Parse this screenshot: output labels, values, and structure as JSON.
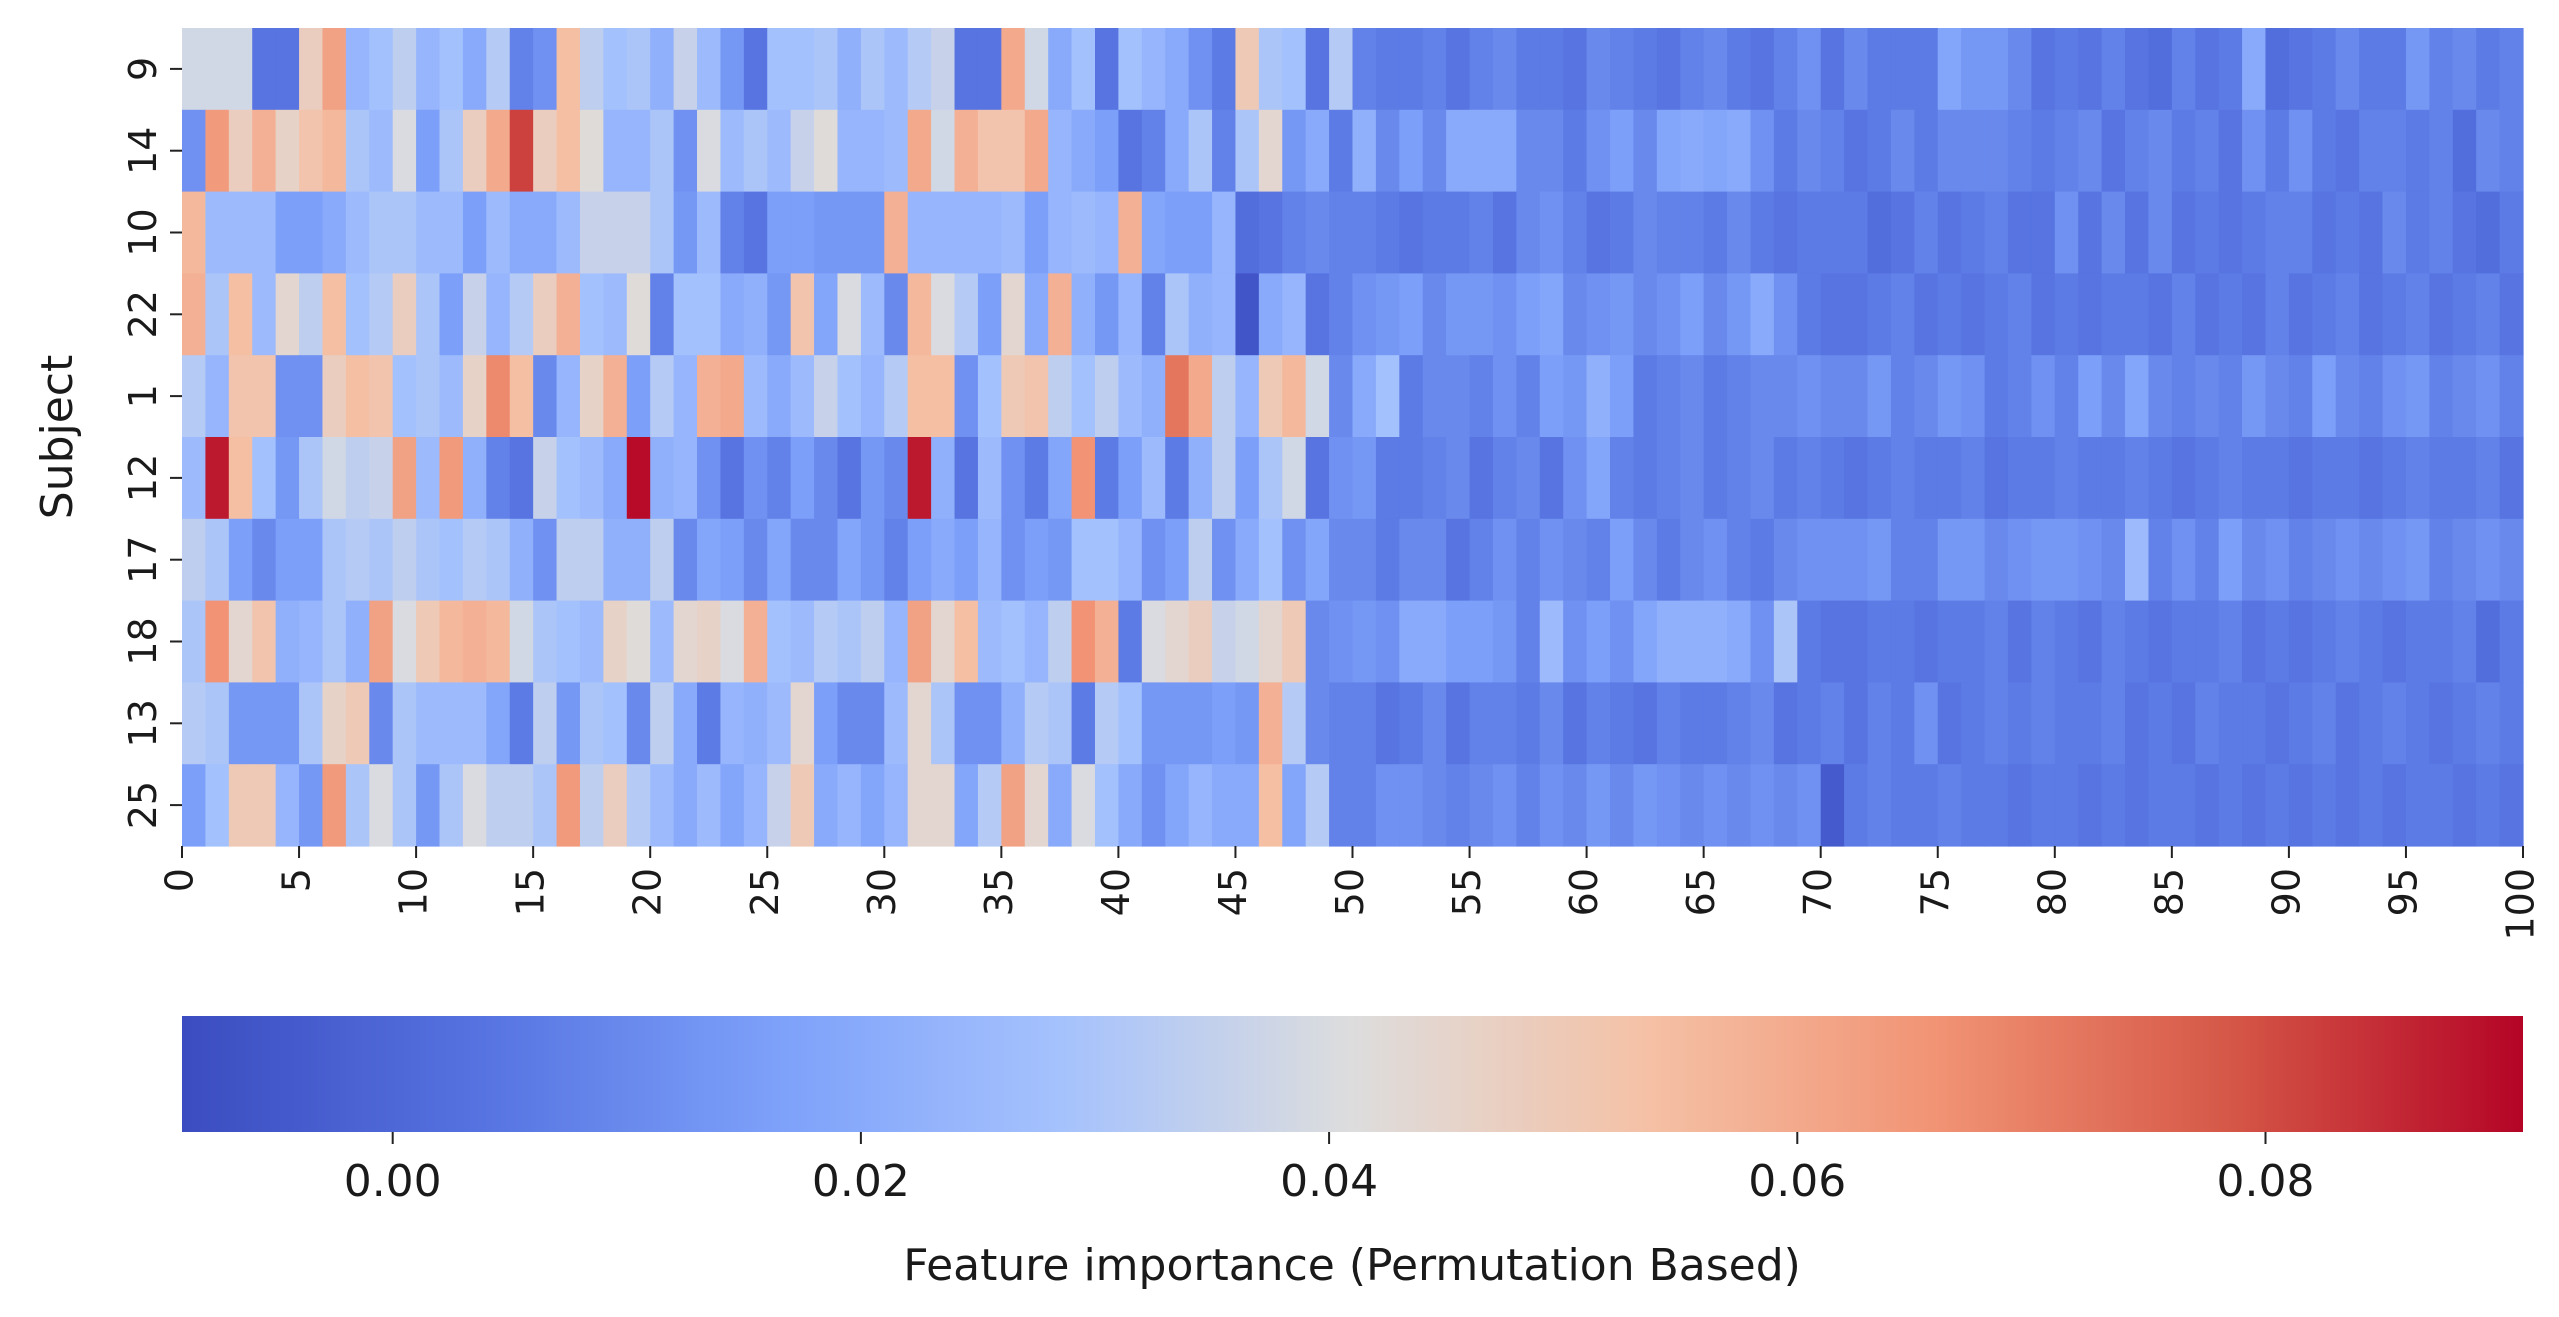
{
  "chart_data": {
    "type": "heatmap",
    "ylabel": "Subject",
    "xlabel": "",
    "colorbar": {
      "label": "Feature importance (Permutation Based)",
      "ticks": [
        "0.00",
        "0.02",
        "0.04",
        "0.06",
        "0.08"
      ],
      "tick_values": [
        0.0,
        0.02,
        0.04,
        0.06,
        0.08
      ],
      "range": [
        -0.009,
        0.091
      ],
      "colormap": "coolwarm",
      "orientation": "horizontal",
      "placement": "bottom"
    },
    "y_categories": [
      "9",
      "14",
      "10",
      "22",
      "1",
      "12",
      "17",
      "18",
      "13",
      "25"
    ],
    "x_ticks": [
      "0",
      "5",
      "10",
      "15",
      "20",
      "25",
      "30",
      "35",
      "40",
      "45",
      "50",
      "55",
      "60",
      "65",
      "70",
      "75",
      "80",
      "85",
      "90",
      "95",
      "100"
    ],
    "x_range": [
      0,
      100
    ],
    "values": [
      [
        0.038,
        0.038,
        0.038,
        0.004,
        0.004,
        0.048,
        0.062,
        0.024,
        0.028,
        0.034,
        0.024,
        0.028,
        0.02,
        0.032,
        0.008,
        0.012,
        0.054,
        0.034,
        0.028,
        0.03,
        0.022,
        0.036,
        0.026,
        0.014,
        0.004,
        0.028,
        0.028,
        0.03,
        0.022,
        0.03,
        0.026,
        0.032,
        0.036,
        0.004,
        0.004,
        0.06,
        0.038,
        0.02,
        0.028,
        0.004,
        0.028,
        0.024,
        0.02,
        0.012,
        0.006,
        0.05,
        0.03,
        0.028,
        0.004,
        0.032,
        0.008,
        0.006,
        0.006,
        0.008,
        0.004,
        0.008,
        0.01,
        0.006,
        0.006,
        0.004,
        0.01,
        0.008,
        0.006,
        0.004,
        0.008,
        0.01,
        0.006,
        0.004,
        0.008,
        0.012,
        0.004,
        0.01,
        0.006,
        0.006,
        0.006,
        0.018,
        0.014,
        0.014,
        0.01,
        0.004,
        0.006,
        0.004,
        0.008,
        0.004,
        0.002,
        0.008,
        0.004,
        0.006,
        0.02,
        0.002,
        0.004,
        0.006,
        0.01,
        0.006,
        0.006,
        0.014,
        0.008,
        0.01,
        0.006,
        0.008
      ],
      [
        0.012,
        0.064,
        0.048,
        0.058,
        0.046,
        0.052,
        0.056,
        0.03,
        0.026,
        0.04,
        0.016,
        0.03,
        0.048,
        0.06,
        0.082,
        0.048,
        0.054,
        0.042,
        0.024,
        0.024,
        0.03,
        0.012,
        0.04,
        0.026,
        0.03,
        0.026,
        0.036,
        0.042,
        0.024,
        0.024,
        0.026,
        0.06,
        0.038,
        0.058,
        0.052,
        0.052,
        0.06,
        0.024,
        0.02,
        0.016,
        0.004,
        0.008,
        0.02,
        0.03,
        0.008,
        0.03,
        0.044,
        0.014,
        0.02,
        0.006,
        0.022,
        0.01,
        0.016,
        0.01,
        0.02,
        0.02,
        0.02,
        0.01,
        0.01,
        0.006,
        0.012,
        0.016,
        0.01,
        0.018,
        0.02,
        0.018,
        0.02,
        0.012,
        0.006,
        0.01,
        0.008,
        0.004,
        0.006,
        0.01,
        0.006,
        0.01,
        0.01,
        0.01,
        0.008,
        0.006,
        0.008,
        0.01,
        0.004,
        0.008,
        0.01,
        0.006,
        0.008,
        0.004,
        0.012,
        0.006,
        0.012,
        0.006,
        0.004,
        0.008,
        0.008,
        0.006,
        0.008,
        0.002,
        0.01,
        0.008
      ],
      [
        0.056,
        0.026,
        0.026,
        0.026,
        0.016,
        0.016,
        0.02,
        0.026,
        0.03,
        0.03,
        0.026,
        0.026,
        0.016,
        0.026,
        0.02,
        0.02,
        0.026,
        0.036,
        0.036,
        0.036,
        0.03,
        0.014,
        0.026,
        0.008,
        0.004,
        0.016,
        0.016,
        0.014,
        0.014,
        0.014,
        0.058,
        0.024,
        0.024,
        0.024,
        0.024,
        0.026,
        0.016,
        0.024,
        0.026,
        0.024,
        0.058,
        0.018,
        0.016,
        0.016,
        0.024,
        0.002,
        0.004,
        0.008,
        0.01,
        0.008,
        0.008,
        0.006,
        0.004,
        0.006,
        0.006,
        0.008,
        0.004,
        0.01,
        0.012,
        0.008,
        0.004,
        0.006,
        0.01,
        0.008,
        0.008,
        0.006,
        0.01,
        0.006,
        0.004,
        0.006,
        0.006,
        0.006,
        0.002,
        0.004,
        0.008,
        0.004,
        0.006,
        0.008,
        0.004,
        0.004,
        0.012,
        0.004,
        0.01,
        0.004,
        0.01,
        0.004,
        0.006,
        0.004,
        0.006,
        0.008,
        0.008,
        0.004,
        0.006,
        0.004,
        0.01,
        0.006,
        0.008,
        0.004,
        0.002,
        0.006
      ],
      [
        0.058,
        0.03,
        0.054,
        0.026,
        0.044,
        0.034,
        0.054,
        0.028,
        0.032,
        0.048,
        0.03,
        0.016,
        0.036,
        0.024,
        0.032,
        0.048,
        0.058,
        0.028,
        0.026,
        0.042,
        0.008,
        0.028,
        0.028,
        0.02,
        0.022,
        0.014,
        0.052,
        0.018,
        0.04,
        0.026,
        0.01,
        0.056,
        0.04,
        0.032,
        0.016,
        0.044,
        0.02,
        0.058,
        0.022,
        0.014,
        0.024,
        0.008,
        0.03,
        0.022,
        0.024,
        -0.006,
        0.02,
        0.024,
        0.004,
        0.008,
        0.012,
        0.014,
        0.016,
        0.01,
        0.014,
        0.014,
        0.012,
        0.016,
        0.018,
        0.01,
        0.012,
        0.014,
        0.01,
        0.012,
        0.016,
        0.01,
        0.014,
        0.02,
        0.012,
        0.006,
        0.004,
        0.004,
        0.006,
        0.008,
        0.004,
        0.006,
        0.004,
        0.006,
        0.008,
        0.004,
        0.006,
        0.004,
        0.006,
        0.006,
        0.004,
        0.008,
        0.004,
        0.006,
        0.004,
        0.008,
        0.004,
        0.006,
        0.008,
        0.004,
        0.006,
        0.008,
        0.004,
        0.006,
        0.008,
        0.004
      ],
      [
        0.032,
        0.024,
        0.052,
        0.052,
        0.012,
        0.012,
        0.048,
        0.054,
        0.052,
        0.028,
        0.03,
        0.026,
        0.046,
        0.068,
        0.054,
        0.01,
        0.024,
        0.046,
        0.058,
        0.016,
        0.032,
        0.024,
        0.058,
        0.06,
        0.026,
        0.02,
        0.026,
        0.036,
        0.028,
        0.024,
        0.032,
        0.054,
        0.054,
        0.012,
        0.028,
        0.05,
        0.052,
        0.034,
        0.028,
        0.034,
        0.026,
        0.022,
        0.072,
        0.06,
        0.034,
        0.024,
        0.05,
        0.056,
        0.038,
        0.01,
        0.02,
        0.028,
        0.006,
        0.01,
        0.01,
        0.008,
        0.012,
        0.008,
        0.016,
        0.014,
        0.022,
        0.016,
        0.006,
        0.008,
        0.01,
        0.006,
        0.008,
        0.01,
        0.01,
        0.012,
        0.01,
        0.01,
        0.014,
        0.008,
        0.01,
        0.014,
        0.012,
        0.006,
        0.008,
        0.012,
        0.008,
        0.016,
        0.01,
        0.018,
        0.01,
        0.008,
        0.01,
        0.008,
        0.014,
        0.01,
        0.008,
        0.016,
        0.01,
        0.008,
        0.012,
        0.014,
        0.008,
        0.01,
        0.012,
        0.008
      ],
      [
        0.026,
        0.088,
        0.054,
        0.028,
        0.014,
        0.03,
        0.038,
        0.034,
        0.036,
        0.062,
        0.026,
        0.064,
        0.022,
        0.008,
        0.004,
        0.036,
        0.028,
        0.026,
        0.02,
        0.09,
        0.022,
        0.024,
        0.012,
        0.004,
        0.012,
        0.008,
        0.016,
        0.01,
        0.004,
        0.014,
        0.01,
        0.088,
        0.022,
        0.004,
        0.026,
        0.012,
        0.006,
        0.018,
        0.066,
        0.006,
        0.016,
        0.026,
        0.006,
        0.022,
        0.034,
        0.016,
        0.03,
        0.038,
        0.004,
        0.012,
        0.014,
        0.006,
        0.006,
        0.008,
        0.01,
        0.004,
        0.008,
        0.01,
        0.004,
        0.012,
        0.018,
        0.008,
        0.006,
        0.008,
        0.01,
        0.006,
        0.008,
        0.01,
        0.006,
        0.008,
        0.006,
        0.004,
        0.006,
        0.008,
        0.006,
        0.006,
        0.008,
        0.004,
        0.006,
        0.006,
        0.008,
        0.006,
        0.006,
        0.008,
        0.006,
        0.004,
        0.006,
        0.008,
        0.006,
        0.006,
        0.004,
        0.006,
        0.006,
        0.004,
        0.006,
        0.008,
        0.006,
        0.006,
        0.008,
        0.004
      ],
      [
        0.034,
        0.03,
        0.016,
        0.01,
        0.016,
        0.016,
        0.03,
        0.032,
        0.03,
        0.034,
        0.03,
        0.028,
        0.032,
        0.03,
        0.022,
        0.012,
        0.034,
        0.034,
        0.022,
        0.022,
        0.034,
        0.01,
        0.018,
        0.016,
        0.01,
        0.018,
        0.01,
        0.01,
        0.018,
        0.014,
        0.008,
        0.016,
        0.02,
        0.016,
        0.024,
        0.012,
        0.016,
        0.014,
        0.028,
        0.028,
        0.024,
        0.012,
        0.016,
        0.034,
        0.012,
        0.02,
        0.028,
        0.012,
        0.018,
        0.01,
        0.01,
        0.006,
        0.01,
        0.01,
        0.004,
        0.008,
        0.012,
        0.008,
        0.012,
        0.01,
        0.008,
        0.016,
        0.01,
        0.006,
        0.01,
        0.012,
        0.008,
        0.006,
        0.01,
        0.012,
        0.012,
        0.012,
        0.014,
        0.008,
        0.008,
        0.014,
        0.014,
        0.01,
        0.012,
        0.014,
        0.014,
        0.012,
        0.01,
        0.026,
        0.008,
        0.012,
        0.008,
        0.016,
        0.01,
        0.012,
        0.008,
        0.01,
        0.012,
        0.01,
        0.012,
        0.014,
        0.008,
        0.01,
        0.012,
        0.01
      ],
      [
        0.03,
        0.066,
        0.044,
        0.052,
        0.022,
        0.024,
        0.03,
        0.022,
        0.062,
        0.04,
        0.05,
        0.056,
        0.058,
        0.056,
        0.038,
        0.03,
        0.028,
        0.026,
        0.046,
        0.042,
        0.026,
        0.044,
        0.046,
        0.04,
        0.058,
        0.028,
        0.026,
        0.032,
        0.03,
        0.034,
        0.024,
        0.062,
        0.044,
        0.054,
        0.026,
        0.028,
        0.024,
        0.034,
        0.066,
        0.058,
        0.006,
        0.04,
        0.044,
        0.048,
        0.036,
        0.038,
        0.044,
        0.05,
        0.01,
        0.012,
        0.014,
        0.012,
        0.02,
        0.02,
        0.016,
        0.016,
        0.014,
        0.008,
        0.026,
        0.012,
        0.016,
        0.012,
        0.018,
        0.022,
        0.022,
        0.022,
        0.02,
        0.012,
        0.03,
        0.006,
        0.004,
        0.004,
        0.006,
        0.006,
        0.004,
        0.006,
        0.006,
        0.008,
        0.004,
        0.008,
        0.006,
        0.004,
        0.008,
        0.006,
        0.004,
        0.006,
        0.006,
        0.008,
        0.004,
        0.006,
        0.004,
        0.006,
        0.008,
        0.006,
        0.004,
        0.006,
        0.006,
        0.008,
        0.002,
        0.006
      ],
      [
        0.032,
        0.03,
        0.014,
        0.014,
        0.014,
        0.03,
        0.046,
        0.05,
        0.01,
        0.03,
        0.026,
        0.026,
        0.026,
        0.018,
        0.006,
        0.034,
        0.014,
        0.03,
        0.028,
        0.01,
        0.034,
        0.02,
        0.006,
        0.024,
        0.022,
        0.026,
        0.044,
        0.016,
        0.01,
        0.01,
        0.026,
        0.044,
        0.03,
        0.012,
        0.012,
        0.022,
        0.032,
        0.03,
        0.006,
        0.032,
        0.028,
        0.014,
        0.014,
        0.014,
        0.016,
        0.014,
        0.058,
        0.032,
        0.01,
        0.008,
        0.008,
        0.004,
        0.006,
        0.01,
        0.004,
        0.008,
        0.008,
        0.006,
        0.01,
        0.004,
        0.008,
        0.006,
        0.004,
        0.008,
        0.006,
        0.006,
        0.008,
        0.01,
        0.004,
        0.006,
        0.008,
        0.004,
        0.008,
        0.006,
        0.012,
        0.004,
        0.006,
        0.008,
        0.006,
        0.008,
        0.006,
        0.006,
        0.008,
        0.004,
        0.006,
        0.004,
        0.008,
        0.006,
        0.006,
        0.004,
        0.006,
        0.008,
        0.004,
        0.006,
        0.008,
        0.006,
        0.004,
        0.006,
        0.008,
        0.006
      ],
      [
        0.016,
        0.028,
        0.05,
        0.05,
        0.024,
        0.014,
        0.064,
        0.03,
        0.04,
        0.03,
        0.014,
        0.03,
        0.04,
        0.034,
        0.034,
        0.03,
        0.064,
        0.034,
        0.048,
        0.032,
        0.026,
        0.02,
        0.026,
        0.018,
        0.024,
        0.036,
        0.05,
        0.02,
        0.024,
        0.018,
        0.024,
        0.044,
        0.044,
        0.018,
        0.032,
        0.062,
        0.044,
        0.02,
        0.04,
        0.028,
        0.02,
        0.012,
        0.018,
        0.024,
        0.02,
        0.02,
        0.054,
        0.018,
        0.032,
        0.008,
        0.008,
        0.012,
        0.012,
        0.01,
        0.008,
        0.01,
        0.012,
        0.008,
        0.012,
        0.01,
        0.014,
        0.01,
        0.014,
        0.012,
        0.01,
        0.012,
        0.01,
        0.012,
        0.01,
        0.012,
        -0.004,
        0.006,
        0.008,
        0.006,
        0.006,
        0.008,
        0.006,
        0.006,
        0.004,
        0.006,
        0.006,
        0.004,
        0.006,
        0.004,
        0.006,
        0.006,
        0.004,
        0.006,
        0.004,
        0.006,
        0.004,
        0.006,
        0.004,
        0.006,
        0.004,
        0.006,
        0.006,
        0.004,
        0.006,
        0.004
      ]
    ]
  }
}
